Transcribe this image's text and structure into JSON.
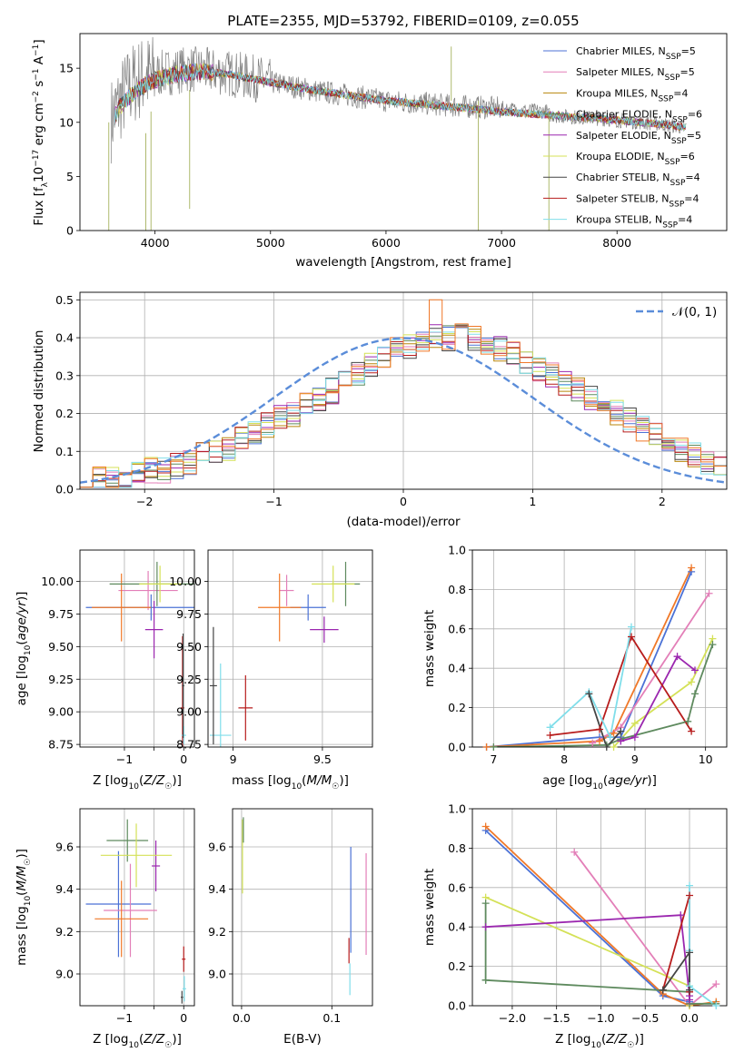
{
  "chart_data": [
    {
      "type": "line",
      "title": "PLATE=2355, MJD=53792, FIBERID=0109, z=0.055",
      "xlabel": "wavelength [Angstrom, rest frame]",
      "ylabel": "Flux [f_λ10^-17 erg cm^-2 s^-1 A^-1]",
      "xlim": [
        3350,
        8950
      ],
      "ylim": [
        0,
        18.2
      ],
      "xticks": [
        4000,
        5000,
        6000,
        7000,
        8000
      ],
      "yticks": [
        0,
        5,
        10,
        15
      ],
      "grid": false,
      "legend_position": "top-right",
      "data_color": "#808080",
      "data_x": [
        3620,
        3700,
        3800,
        3900,
        4000,
        4100,
        4200,
        4300,
        4400,
        4500,
        4600,
        4700,
        4800,
        4900,
        5000,
        5200,
        5400,
        5600,
        5800,
        6000,
        6200,
        6400,
        6600,
        6800,
        7000,
        7200,
        7400
      ],
      "data_y": [
        10.2,
        12.0,
        13.5,
        14.2,
        14.4,
        14.6,
        14.8,
        14.9,
        14.8,
        14.7,
        14.6,
        14.4,
        14.2,
        14.0,
        13.7,
        13.3,
        12.9,
        12.6,
        12.3,
        12.0,
        11.8,
        11.7,
        11.5,
        11.4,
        11.3,
        11.1,
        11.0
      ],
      "model_x": [
        3650,
        3700,
        3800,
        3900,
        4000,
        4200,
        4400,
        4600,
        4800,
        5000,
        5200,
        5400,
        5600,
        5800,
        6000,
        6200,
        6400,
        6600,
        6800,
        7000,
        7200,
        7400,
        7600,
        7800,
        8000,
        8200,
        8400,
        8600
      ],
      "model_y": [
        10.5,
        11.5,
        12.6,
        13.4,
        13.9,
        14.5,
        14.7,
        14.5,
        14.1,
        13.7,
        13.3,
        12.9,
        12.6,
        12.3,
        12.0,
        11.8,
        11.6,
        11.4,
        11.2,
        11.0,
        10.8,
        10.7,
        10.5,
        10.4,
        10.2,
        10.0,
        9.8,
        9.5
      ],
      "series": [
        {
          "name": "Chabrier MILES, N",
          "nssp": "5",
          "color": "#4c72d6"
        },
        {
          "name": "Salpeter MILES, N",
          "nssp": "5",
          "color": "#e37fb8"
        },
        {
          "name": "Kroupa MILES, N",
          "nssp": "4",
          "color": "#b8860b"
        },
        {
          "name": "Chabrier ELODIE, N",
          "nssp": "6",
          "color": "#5e8a5e"
        },
        {
          "name": "Salpeter ELODIE, N",
          "nssp": "5",
          "color": "#9b27af"
        },
        {
          "name": "Kroupa ELODIE, N",
          "nssp": "6",
          "color": "#d4e157"
        },
        {
          "name": "Chabrier STELIB, N",
          "nssp": "4",
          "color": "#444444"
        },
        {
          "name": "Salpeter STELIB, N",
          "nssp": "4",
          "color": "#b71c1c"
        },
        {
          "name": "Kroupa STELIB, N",
          "nssp": "4",
          "color": "#80deea"
        }
      ],
      "legend_sub": "SSP"
    },
    {
      "type": "line",
      "xlabel": "(data-model)/error",
      "ylabel": "Normed distribution",
      "xlim": [
        -2.5,
        2.5
      ],
      "ylim": [
        0,
        0.52
      ],
      "xticks": [
        -2,
        -1,
        0,
        1,
        2
      ],
      "yticks": [
        0.0,
        0.1,
        0.2,
        0.3,
        0.4,
        0.5
      ],
      "grid": true,
      "legend_position": "top-right",
      "gaussian_label": "N(0, 1)",
      "gaussian_color": "#5b8dd9",
      "hist_edges_start": -2.5,
      "hist_bin_width": 0.1,
      "hist_base": [
        0.02,
        0.03,
        0.03,
        0.03,
        0.04,
        0.05,
        0.05,
        0.06,
        0.07,
        0.09,
        0.1,
        0.11,
        0.13,
        0.15,
        0.17,
        0.19,
        0.2,
        0.22,
        0.24,
        0.26,
        0.28,
        0.3,
        0.33,
        0.35,
        0.37,
        0.38,
        0.39,
        0.4,
        0.4,
        0.41,
        0.4,
        0.39,
        0.37,
        0.36,
        0.34,
        0.32,
        0.3,
        0.28,
        0.26,
        0.24,
        0.22,
        0.2,
        0.18,
        0.16,
        0.14,
        0.12,
        0.1,
        0.09,
        0.07,
        0.06
      ]
    },
    {
      "type": "scatter",
      "xlabel": "Z [log10(Z/Z☉)]",
      "ylabel": "age  [log10(age/yr)]",
      "xlim": [
        -1.75,
        0.18
      ],
      "ylim": [
        8.73,
        10.24
      ],
      "xticks": [
        -1,
        -0.5,
        0
      ],
      "xtick_labels": [
        "−1",
        "",
        "0"
      ],
      "yticks": [
        8.75,
        9.0,
        9.25,
        9.5,
        9.75,
        10.0
      ],
      "grid": true,
      "points": [
        {
          "x": -0.55,
          "y": 9.8,
          "xerr": 1.1,
          "yerr": 0.1,
          "c": "#4c72d6"
        },
        {
          "x": -0.6,
          "y": 9.93,
          "xerr": 0.5,
          "yerr": 0.15,
          "c": "#e37fb8"
        },
        {
          "x": -1.05,
          "y": 9.8,
          "xerr": 0.5,
          "yerr": 0.26,
          "c": "#f07828"
        },
        {
          "x": -0.45,
          "y": 9.98,
          "xerr": 0.8,
          "yerr": 0.17,
          "c": "#5e8a5e"
        },
        {
          "x": -0.5,
          "y": 9.63,
          "xerr": 0.15,
          "yerr": 0.22,
          "c": "#9b27af"
        },
        {
          "x": -0.4,
          "y": 9.98,
          "xerr": 0.35,
          "yerr": 0.14,
          "c": "#d4e157"
        },
        {
          "x": -0.02,
          "y": 9.03,
          "xerr": 0.03,
          "yerr": 0.55,
          "c": "#b71c1c"
        },
        {
          "x": 0.0,
          "y": 8.82,
          "xerr": 0.04,
          "yerr": 0.07,
          "c": "#80deea"
        },
        {
          "x": -0.01,
          "y": 9.2,
          "xerr": 0.02,
          "yerr": 0.4,
          "c": "#444444"
        }
      ]
    },
    {
      "type": "scatter",
      "xlabel": "mass [log10(M/M☉)]",
      "ylabel": "",
      "xlim": [
        8.86,
        9.78
      ],
      "ylim": [
        8.73,
        10.24
      ],
      "xticks": [
        9.0,
        9.5
      ],
      "xtick_labels": [
        "9",
        "9.5"
      ],
      "yticks": [
        8.75,
        9.0,
        9.25,
        9.5,
        9.75,
        10.0
      ],
      "grid": true,
      "points": [
        {
          "x": 9.42,
          "y": 9.8,
          "xerr": 0.1,
          "yerr": 0.1,
          "c": "#4c72d6"
        },
        {
          "x": 9.3,
          "y": 9.93,
          "xerr": 0.04,
          "yerr": 0.12,
          "c": "#e37fb8"
        },
        {
          "x": 9.26,
          "y": 9.8,
          "xerr": 0.12,
          "yerr": 0.26,
          "c": "#f07828"
        },
        {
          "x": 9.63,
          "y": 9.98,
          "xerr": 0.08,
          "yerr": 0.17,
          "c": "#5e8a5e"
        },
        {
          "x": 9.51,
          "y": 9.63,
          "xerr": 0.08,
          "yerr": 0.1,
          "c": "#9b27af"
        },
        {
          "x": 9.56,
          "y": 9.98,
          "xerr": 0.12,
          "yerr": 0.14,
          "c": "#d4e157"
        },
        {
          "x": 9.07,
          "y": 9.03,
          "xerr": 0.04,
          "yerr": 0.25,
          "c": "#b71c1c"
        },
        {
          "x": 8.93,
          "y": 8.82,
          "xerr": 0.06,
          "yerr": 0.55,
          "c": "#80deea"
        },
        {
          "x": 8.89,
          "y": 9.2,
          "xerr": 0.02,
          "yerr": 0.45,
          "c": "#444444"
        }
      ]
    },
    {
      "type": "line",
      "xlabel": "age  [log10(age/yr)]",
      "ylabel": "mass weight",
      "xlim": [
        6.7,
        10.3
      ],
      "ylim": [
        0,
        1.0
      ],
      "xticks": [
        7,
        8,
        9,
        10
      ],
      "yticks": [
        0.0,
        0.2,
        0.4,
        0.6,
        0.8,
        1.0
      ],
      "grid": true,
      "series": [
        {
          "c": "#4c72d6",
          "x": [
            6.9,
            8.5,
            8.8,
            9.8
          ],
          "y": [
            0.0,
            0.05,
            0.05,
            0.89
          ]
        },
        {
          "c": "#f07828",
          "x": [
            6.9,
            8.5,
            8.7,
            9.8
          ],
          "y": [
            0.0,
            0.03,
            0.07,
            0.91
          ]
        },
        {
          "c": "#e37fb8",
          "x": [
            8.4,
            8.8,
            10.05
          ],
          "y": [
            0.02,
            0.1,
            0.78
          ]
        },
        {
          "c": "#d4e157",
          "x": [
            8.7,
            9.0,
            9.8,
            10.1
          ],
          "y": [
            0.0,
            0.12,
            0.33,
            0.55
          ]
        },
        {
          "c": "#5e8a5e",
          "x": [
            7.0,
            8.6,
            8.8,
            9.75,
            9.85,
            10.1
          ],
          "y": [
            0.0,
            0.01,
            0.04,
            0.13,
            0.27,
            0.52
          ]
        },
        {
          "c": "#9b27af",
          "x": [
            8.8,
            9.0,
            9.6,
            9.85
          ],
          "y": [
            0.03,
            0.05,
            0.46,
            0.39
          ]
        },
        {
          "c": "#b71c1c",
          "x": [
            7.8,
            8.5,
            8.95,
            9.8
          ],
          "y": [
            0.06,
            0.09,
            0.56,
            0.08
          ]
        },
        {
          "c": "#80deea",
          "x": [
            7.8,
            8.35,
            8.65,
            8.95
          ],
          "y": [
            0.1,
            0.28,
            0.05,
            0.61
          ]
        },
        {
          "c": "#444444",
          "x": [
            8.35,
            8.6,
            8.8
          ],
          "y": [
            0.27,
            0.0,
            0.08
          ]
        }
      ]
    },
    {
      "type": "scatter",
      "xlabel": "Z [log10(Z/Z☉)]",
      "ylabel": "mass [log10(M/M☉)]",
      "xlim": [
        -1.75,
        0.18
      ],
      "ylim": [
        8.85,
        9.78
      ],
      "xticks": [
        -1,
        -0.5,
        0
      ],
      "xtick_labels": [
        "−1",
        "",
        "0"
      ],
      "yticks": [
        9.0,
        9.2,
        9.4,
        9.6
      ],
      "grid": true,
      "points": [
        {
          "x": -1.1,
          "y": 9.33,
          "xerr": 0.55,
          "yerr": 0.25,
          "c": "#4c72d6"
        },
        {
          "x": -0.9,
          "y": 9.3,
          "xerr": 0.45,
          "yerr": 0.22,
          "c": "#e37fb8"
        },
        {
          "x": -1.05,
          "y": 9.26,
          "xerr": 0.45,
          "yerr": 0.18,
          "c": "#f07828"
        },
        {
          "x": -0.95,
          "y": 9.63,
          "xerr": 0.35,
          "yerr": 0.1,
          "c": "#5e8a5e"
        },
        {
          "x": -0.47,
          "y": 9.51,
          "xerr": 0.07,
          "yerr": 0.12,
          "c": "#9b27af"
        },
        {
          "x": -0.8,
          "y": 9.56,
          "xerr": 0.6,
          "yerr": 0.15,
          "c": "#d4e157"
        },
        {
          "x": 0.0,
          "y": 9.07,
          "xerr": 0.03,
          "yerr": 0.06,
          "c": "#b71c1c"
        },
        {
          "x": 0.01,
          "y": 8.93,
          "xerr": 0.03,
          "yerr": 0.06,
          "c": "#80deea"
        },
        {
          "x": -0.03,
          "y": 8.89,
          "xerr": 0.02,
          "yerr": 0.03,
          "c": "#444444"
        }
      ]
    },
    {
      "type": "scatter",
      "xlabel": "E(B-V)",
      "ylabel": "",
      "xlim": [
        -0.01,
        0.145
      ],
      "ylim": [
        8.85,
        9.78
      ],
      "xticks": [
        0.0,
        0.1
      ],
      "xtick_labels": [
        "0.0",
        "0.1"
      ],
      "yticks": [
        9.0,
        9.2,
        9.4,
        9.6
      ],
      "grid": true,
      "segments": [
        {
          "x": 0.001,
          "y0": 9.38,
          "y1": 9.73,
          "c": "#d4e157"
        },
        {
          "x": 0.002,
          "y0": 9.62,
          "y1": 9.74,
          "c": "#5e8a5e"
        },
        {
          "x": 0.119,
          "y0": 9.05,
          "y1": 9.17,
          "c": "#b71c1c"
        },
        {
          "x": 0.12,
          "y0": 8.9,
          "y1": 9.05,
          "c": "#80deea"
        },
        {
          "x": 0.121,
          "y0": 9.1,
          "y1": 9.6,
          "c": "#4c72d6"
        },
        {
          "x": 0.138,
          "y0": 9.09,
          "y1": 9.57,
          "c": "#e37fb8"
        }
      ]
    },
    {
      "type": "line",
      "xlabel": "Z [log10(Z/Z☉)]",
      "ylabel": "mass weight",
      "xlim": [
        -2.45,
        0.42
      ],
      "ylim": [
        0,
        1.0
      ],
      "xticks": [
        -2.0,
        -1.5,
        -1.0,
        -0.5,
        0.0
      ],
      "yticks": [
        0.0,
        0.2,
        0.4,
        0.6,
        0.8,
        1.0
      ],
      "grid": true,
      "series": [
        {
          "c": "#4c72d6",
          "x": [
            -2.3,
            -0.3,
            0.0
          ],
          "y": [
            0.89,
            0.05,
            0.02
          ]
        },
        {
          "c": "#f07828",
          "x": [
            -2.3,
            -0.3,
            0.0,
            0.3
          ],
          "y": [
            0.91,
            0.06,
            0.0,
            0.02
          ]
        },
        {
          "c": "#e37fb8",
          "x": [
            -1.3,
            0.0,
            0.3
          ],
          "y": [
            0.78,
            0.0,
            0.11
          ]
        },
        {
          "c": "#d4e157",
          "x": [
            -2.3,
            0.0,
            0.0
          ],
          "y": [
            0.55,
            0.1,
            0.0
          ]
        },
        {
          "c": "#5e8a5e",
          "x": [
            -2.3,
            -2.3,
            -2.3,
            0.0,
            0.0,
            0.3
          ],
          "y": [
            0.13,
            0.52,
            0.13,
            0.07,
            0.01,
            0.01
          ]
        },
        {
          "c": "#9b27af",
          "x": [
            -2.3,
            -0.1,
            0.0,
            0.0
          ],
          "y": [
            0.4,
            0.46,
            0.05,
            0.03
          ]
        },
        {
          "c": "#b71c1c",
          "x": [
            -0.3,
            0.0,
            0.0
          ],
          "y": [
            0.08,
            0.56,
            0.07
          ]
        },
        {
          "c": "#80deea",
          "x": [
            0.0,
            0.0,
            0.0,
            0.3
          ],
          "y": [
            0.61,
            0.28,
            0.1,
            0.0
          ]
        },
        {
          "c": "#444444",
          "x": [
            -0.3,
            0.0,
            0.0
          ],
          "y": [
            0.08,
            0.27,
            0.08
          ]
        }
      ]
    }
  ]
}
